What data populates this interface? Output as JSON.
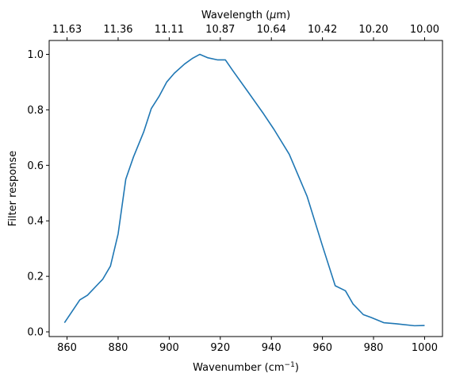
{
  "chart_data": {
    "type": "line",
    "xlabel": "Wavenumber (cm",
    "xlabel_sup": "−1",
    "xlabel_suffix": ")",
    "ylabel": "Filter response",
    "top_axis_label": "Wavelength (",
    "top_axis_label_mu": "μ",
    "top_axis_label_suffix": "m)",
    "xlim": [
      853,
      1007
    ],
    "ylim": [
      -0.017,
      1.05
    ],
    "x_ticks": [
      860,
      880,
      900,
      920,
      940,
      960,
      980,
      1000
    ],
    "y_ticks": [
      0.0,
      0.2,
      0.4,
      0.6,
      0.8,
      1.0
    ],
    "top_ticks": [
      {
        "label": "11.63",
        "wavenumber": 860
      },
      {
        "label": "11.36",
        "wavenumber": 880
      },
      {
        "label": "11.11",
        "wavenumber": 900
      },
      {
        "label": "10.87",
        "wavenumber": 920
      },
      {
        "label": "10.64",
        "wavenumber": 940
      },
      {
        "label": "10.42",
        "wavenumber": 960
      },
      {
        "label": "10.20",
        "wavenumber": 980
      },
      {
        "label": "10.00",
        "wavenumber": 1000
      }
    ],
    "grid": false,
    "series": [
      {
        "color": "#1f77b4",
        "x": [
          859,
          865,
          868,
          874,
          877,
          880,
          883,
          886,
          890,
          893,
          896,
          899,
          902,
          906,
          909,
          912,
          915,
          919,
          922,
          925,
          931,
          937,
          941,
          947,
          954,
          960,
          965,
          969,
          972,
          976,
          979,
          984,
          989,
          996,
          1000
        ],
        "y": [
          0.033,
          0.115,
          0.132,
          0.19,
          0.237,
          0.353,
          0.55,
          0.63,
          0.72,
          0.805,
          0.848,
          0.9,
          0.932,
          0.965,
          0.985,
          1.0,
          0.988,
          0.98,
          0.98,
          0.94,
          0.863,
          0.785,
          0.73,
          0.64,
          0.488,
          0.31,
          0.166,
          0.148,
          0.1,
          0.062,
          0.052,
          0.033,
          0.029,
          0.022,
          0.023
        ]
      }
    ]
  }
}
